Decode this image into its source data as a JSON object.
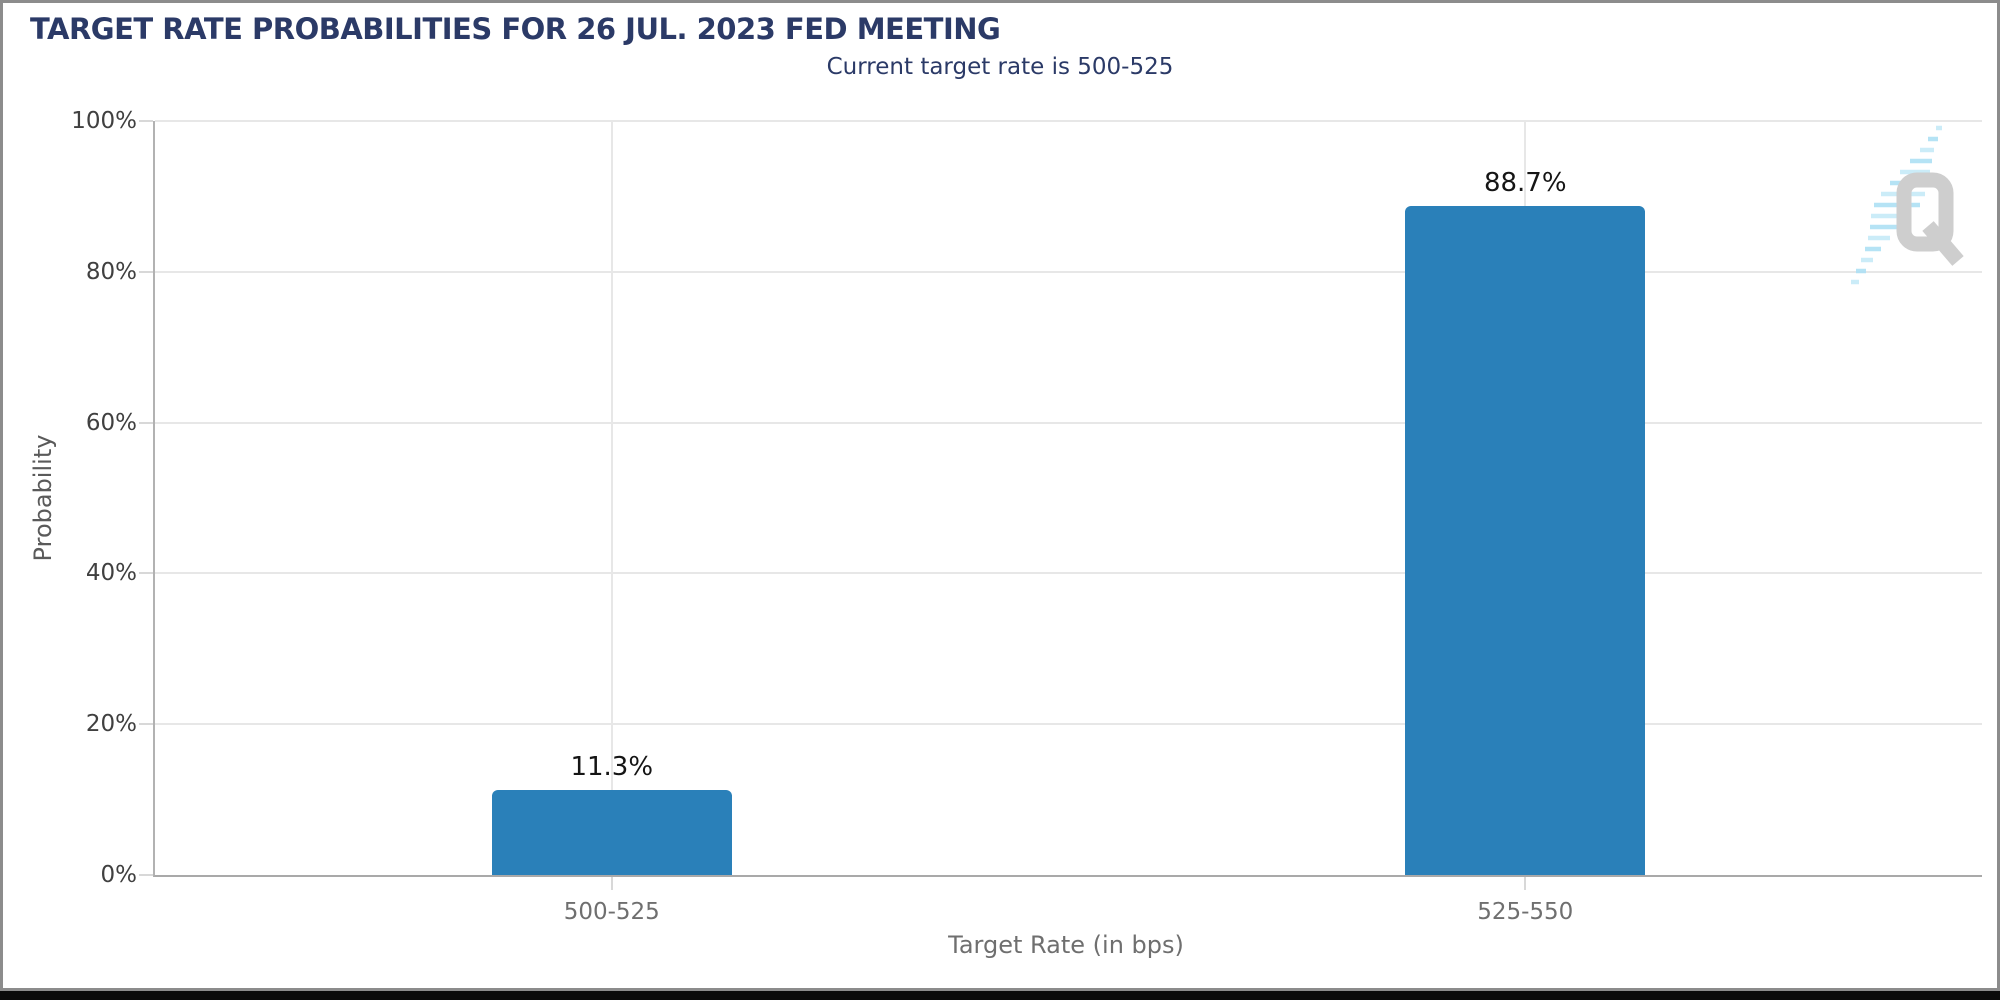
{
  "chart_data": {
    "type": "bar",
    "title": "TARGET RATE PROBABILITIES FOR 26 JUL. 2023 FED MEETING",
    "subtitle": "Current target rate is 500-525",
    "categories": [
      "500-525",
      "525-550"
    ],
    "values": [
      11.3,
      88.7
    ],
    "value_labels": [
      "11.3%",
      "88.7%"
    ],
    "xlabel": "Target Rate (in bps)",
    "ylabel": "Probability",
    "ylim": [
      0,
      100
    ],
    "ytick_values": [
      0,
      20,
      40,
      60,
      80,
      100
    ],
    "ytick_labels": [
      "0%",
      "20%",
      "40%",
      "60%",
      "80%",
      "100%"
    ],
    "grid": true,
    "legend_position": "none",
    "colors": {
      "bar": "#2a80b9",
      "title": "#2b3a67",
      "grid": "#e7e7e7",
      "axis": "#adadad",
      "ytick_label": "#404040",
      "xtick_label": "#6f6f6f",
      "value_label": "#151515",
      "watermark_gray": "#c9c9c9",
      "watermark_blue": "#b4e2f6"
    }
  },
  "watermark": {
    "letter": "Q"
  }
}
